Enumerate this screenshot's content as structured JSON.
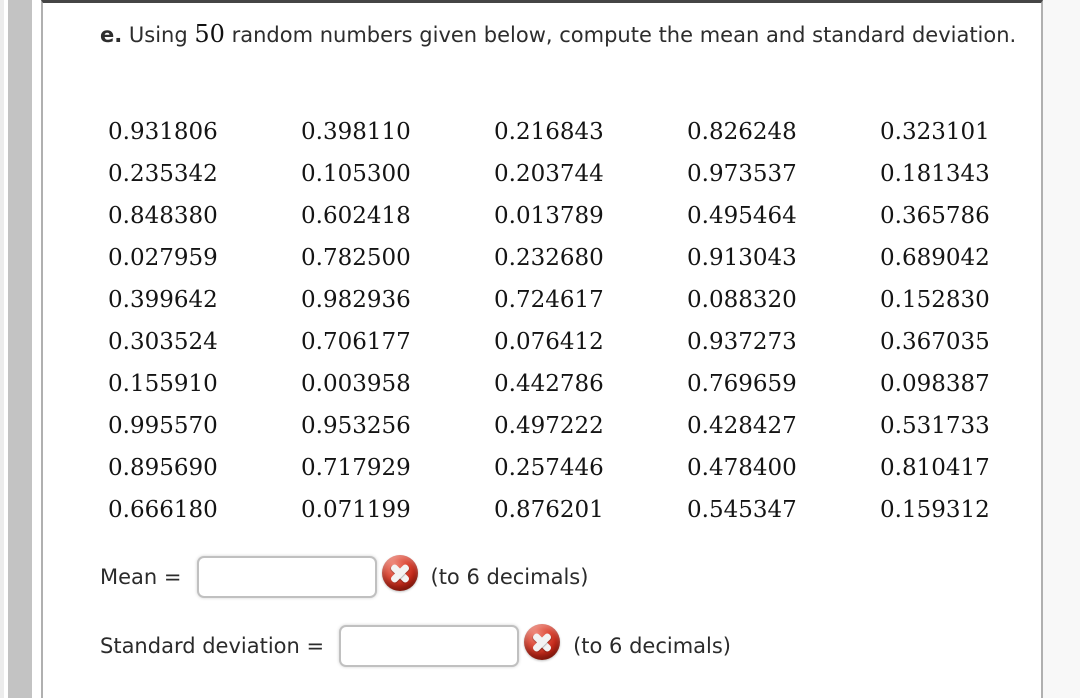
{
  "question": {
    "item_label": "e.",
    "text_part1": " Using ",
    "highlight_number": "50",
    "text_part2": " random numbers given below, compute the mean and standard deviation."
  },
  "random_numbers": {
    "rows": [
      [
        "0.931806",
        "0.398110",
        "0.216843",
        "0.826248",
        "0.323101"
      ],
      [
        "0.235342",
        "0.105300",
        "0.203744",
        "0.973537",
        "0.181343"
      ],
      [
        "0.848380",
        "0.602418",
        "0.013789",
        "0.495464",
        "0.365786"
      ],
      [
        "0.027959",
        "0.782500",
        "0.232680",
        "0.913043",
        "0.689042"
      ],
      [
        "0.399642",
        "0.982936",
        "0.724617",
        "0.088320",
        "0.152830"
      ],
      [
        "0.303524",
        "0.706177",
        "0.076412",
        "0.937273",
        "0.367035"
      ],
      [
        "0.155910",
        "0.003958",
        "0.442786",
        "0.769659",
        "0.098387"
      ],
      [
        "0.995570",
        "0.953256",
        "0.497222",
        "0.428427",
        "0.531733"
      ],
      [
        "0.895690",
        "0.717929",
        "0.257446",
        "0.478400",
        "0.810417"
      ],
      [
        "0.666180",
        "0.071199",
        "0.876201",
        "0.545347",
        "0.159312"
      ]
    ]
  },
  "answers": {
    "mean": {
      "label": "Mean =",
      "value": "",
      "suffix": "(to 6 decimals)",
      "status_icon": "red-x-incorrect"
    },
    "standard_deviation": {
      "label": "Standard deviation =",
      "value": "",
      "suffix": "(to 6 decimals)",
      "status_icon": "red-x-incorrect"
    }
  },
  "colors": {
    "error_red": "#c22718",
    "panel_border": "#b0b0b0",
    "scrollbar_gray": "#c3c3c3",
    "panel_top_border": "#454545"
  }
}
